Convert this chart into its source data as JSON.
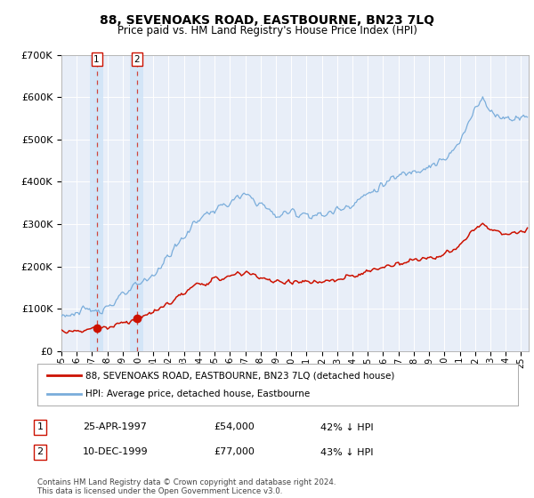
{
  "title": "88, SEVENOAKS ROAD, EASTBOURNE, BN23 7LQ",
  "subtitle": "Price paid vs. HM Land Registry's House Price Index (HPI)",
  "background_color": "#ffffff",
  "plot_bg_color": "#e8eef8",
  "grid_color": "#ffffff",
  "sale1_date": 1997.3,
  "sale1_price": 54000,
  "sale2_date": 1999.92,
  "sale2_price": 77000,
  "legend_line1": "88, SEVENOAKS ROAD, EASTBOURNE, BN23 7LQ (detached house)",
  "legend_line2": "HPI: Average price, detached house, Eastbourne",
  "annotation1_text": "25-APR-1997",
  "annotation1_price": "£54,000",
  "annotation1_pct": "42% ↓ HPI",
  "annotation2_text": "10-DEC-1999",
  "annotation2_price": "£77,000",
  "annotation2_pct": "43% ↓ HPI",
  "footer": "Contains HM Land Registry data © Crown copyright and database right 2024.\nThis data is licensed under the Open Government Licence v3.0.",
  "hpi_color": "#7aaddb",
  "property_color": "#cc1100",
  "sale_dot_color": "#cc1100",
  "sale_shade_color": "#d0e4f7",
  "xmin": 1995.0,
  "xmax": 2025.5,
  "ymin": 0,
  "ymax": 700000
}
